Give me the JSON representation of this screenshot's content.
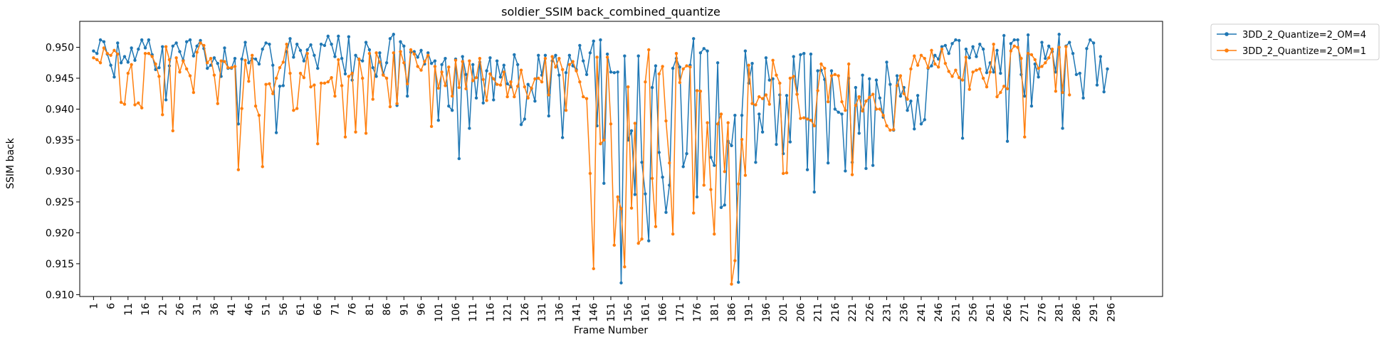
{
  "chart_data": {
    "type": "line",
    "title": "soldier_SSIM back_combined_quantize",
    "xlabel": "Frame Number",
    "ylabel": "SSIM back",
    "ylim": [
      0.9097,
      0.9542
    ],
    "xlim": [
      -3,
      311
    ],
    "yticks": [
      0.91,
      0.915,
      0.92,
      0.925,
      0.93,
      0.935,
      0.94,
      0.945,
      0.95
    ],
    "ytick_labels": [
      "0.910",
      "0.915",
      "0.920",
      "0.925",
      "0.930",
      "0.935",
      "0.940",
      "0.945",
      "0.950"
    ],
    "xticks": [
      1,
      6,
      11,
      16,
      21,
      26,
      31,
      36,
      41,
      46,
      51,
      56,
      61,
      66,
      71,
      76,
      81,
      86,
      91,
      96,
      101,
      106,
      111,
      116,
      121,
      126,
      131,
      136,
      141,
      146,
      151,
      156,
      161,
      166,
      171,
      176,
      181,
      186,
      191,
      196,
      201,
      206,
      211,
      216,
      221,
      226,
      231,
      236,
      241,
      246,
      251,
      256,
      261,
      266,
      271,
      276,
      281,
      286,
      291,
      296
    ],
    "xtick_labels": [
      "1",
      "6",
      "11",
      "16",
      "21",
      "26",
      "31",
      "36",
      "41",
      "46",
      "51",
      "56",
      "61",
      "66",
      "71",
      "76",
      "81",
      "86",
      "91",
      "96",
      "101",
      "106",
      "111",
      "116",
      "121",
      "126",
      "131",
      "136",
      "141",
      "146",
      "151",
      "156",
      "161",
      "166",
      "171",
      "176",
      "181",
      "186",
      "191",
      "196",
      "201",
      "206",
      "211",
      "216",
      "221",
      "226",
      "231",
      "236",
      "241",
      "246",
      "251",
      "256",
      "261",
      "266",
      "271",
      "276",
      "281",
      "286",
      "291",
      "296"
    ],
    "x_start": 1,
    "legend_position": "outside-top-right",
    "series": [
      {
        "name": "3DD_2_Quantize=2_OM=4",
        "color": "#1f77b4",
        "values": [
          0.9494,
          0.949,
          0.9512,
          0.9509,
          0.9489,
          0.9471,
          0.9452,
          0.9507,
          0.9475,
          0.9485,
          0.9476,
          0.9499,
          0.9479,
          0.9497,
          0.9512,
          0.9499,
          0.9512,
          0.9488,
          0.9464,
          0.9467,
          0.9501,
          0.9415,
          0.947,
          0.9502,
          0.9507,
          0.9493,
          0.9479,
          0.9509,
          0.9512,
          0.9486,
          0.9502,
          0.9511,
          0.9498,
          0.9466,
          0.9471,
          0.9483,
          0.9474,
          0.9453,
          0.9499,
          0.9466,
          0.9466,
          0.9482,
          0.9376,
          0.9481,
          0.9508,
          0.9475,
          0.9482,
          0.9481,
          0.9473,
          0.9497,
          0.9507,
          0.9505,
          0.9471,
          0.9362,
          0.9437,
          0.9438,
          0.9493,
          0.9514,
          0.9484,
          0.9505,
          0.9495,
          0.9478,
          0.9496,
          0.9504,
          0.9487,
          0.9466,
          0.9505,
          0.9503,
          0.9518,
          0.9505,
          0.9485,
          0.9518,
          0.9482,
          0.9457,
          0.9517,
          0.9447,
          0.9487,
          0.948,
          0.9478,
          0.9508,
          0.9496,
          0.9467,
          0.9453,
          0.9491,
          0.9456,
          0.9475,
          0.9514,
          0.9521,
          0.9406,
          0.9509,
          0.9502,
          0.9421,
          0.9492,
          0.9493,
          0.9484,
          0.9495,
          0.9473,
          0.9491,
          0.9474,
          0.9478,
          0.9382,
          0.9472,
          0.9482,
          0.9405,
          0.9398,
          0.9481,
          0.932,
          0.9485,
          0.9456,
          0.9369,
          0.9472,
          0.9418,
          0.9476,
          0.941,
          0.9462,
          0.9483,
          0.9415,
          0.9478,
          0.9452,
          0.9471,
          0.9441,
          0.9436,
          0.9488,
          0.9472,
          0.9375,
          0.9384,
          0.944,
          0.9433,
          0.9413,
          0.9487,
          0.9455,
          0.9487,
          0.9389,
          0.9478,
          0.9487,
          0.9455,
          0.9354,
          0.9459,
          0.9487,
          0.947,
          0.9464,
          0.9503,
          0.9478,
          0.9456,
          0.9491,
          0.951,
          0.9373,
          0.9512,
          0.928,
          0.9489,
          0.946,
          0.9459,
          0.946,
          0.9119,
          0.9486,
          0.935,
          0.9365,
          0.9262,
          0.9486,
          0.9314,
          0.9263,
          0.9187,
          0.9435,
          0.947,
          0.933,
          0.929,
          0.9233,
          0.9277,
          0.9466,
          0.9482,
          0.9468,
          0.9307,
          0.9328,
          0.9471,
          0.9514,
          0.9258,
          0.9491,
          0.9498,
          0.9494,
          0.9322,
          0.9309,
          0.9475,
          0.9241,
          0.9245,
          0.9348,
          0.9341,
          0.939,
          0.912,
          0.939,
          0.9494,
          0.9442,
          0.9474,
          0.9314,
          0.9392,
          0.9363,
          0.9483,
          0.9447,
          0.9449,
          0.9343,
          0.9423,
          0.9328,
          0.9422,
          0.9347,
          0.9485,
          0.9424,
          0.9488,
          0.949,
          0.9302,
          0.9489,
          0.9266,
          0.9462,
          0.9463,
          0.9448,
          0.9313,
          0.9462,
          0.94,
          0.9395,
          0.9392,
          0.93,
          0.945,
          0.9314,
          0.9435,
          0.9361,
          0.9455,
          0.9304,
          0.9449,
          0.9309,
          0.9447,
          0.9418,
          0.9387,
          0.9476,
          0.944,
          0.9366,
          0.9454,
          0.9421,
          0.9435,
          0.9398,
          0.9413,
          0.9368,
          0.9422,
          0.9376,
          0.9383,
          0.9466,
          0.947,
          0.9487,
          0.9481,
          0.9501,
          0.9503,
          0.949,
          0.9506,
          0.9512,
          0.9511,
          0.9353,
          0.9497,
          0.9483,
          0.9501,
          0.9485,
          0.9505,
          0.9497,
          0.9459,
          0.9475,
          0.946,
          0.9495,
          0.9458,
          0.9519,
          0.9348,
          0.9506,
          0.9512,
          0.9512,
          0.9456,
          0.9421,
          0.952,
          0.9405,
          0.9473,
          0.9452,
          0.9508,
          0.9482,
          0.9502,
          0.9493,
          0.946,
          0.9521,
          0.9369,
          0.9502,
          0.9508,
          0.949,
          0.9456,
          0.9458,
          0.9418,
          0.9498,
          0.9512,
          0.9507,
          0.9439,
          0.9485,
          0.9428,
          0.9465
        ]
      },
      {
        "name": "3DD_2_Quantize=2_OM=1",
        "color": "#ff7f0e",
        "values": [
          0.9483,
          0.948,
          0.9475,
          0.9499,
          0.949,
          0.9487,
          0.9495,
          0.9489,
          0.9411,
          0.9408,
          0.9458,
          0.9472,
          0.9407,
          0.941,
          0.9402,
          0.949,
          0.949,
          0.9485,
          0.9473,
          0.9453,
          0.9391,
          0.9501,
          0.948,
          0.9365,
          0.9483,
          0.946,
          0.9478,
          0.9465,
          0.9454,
          0.9427,
          0.9492,
          0.9507,
          0.9503,
          0.9475,
          0.9482,
          0.9455,
          0.9409,
          0.9478,
          0.9477,
          0.9467,
          0.9467,
          0.9469,
          0.9302,
          0.9401,
          0.9479,
          0.9445,
          0.9487,
          0.9405,
          0.939,
          0.9307,
          0.944,
          0.9441,
          0.9425,
          0.945,
          0.9467,
          0.9476,
          0.9505,
          0.9458,
          0.9398,
          0.9401,
          0.9458,
          0.9451,
          0.949,
          0.9436,
          0.9439,
          0.9344,
          0.9442,
          0.9442,
          0.9444,
          0.9451,
          0.9421,
          0.948,
          0.9438,
          0.9355,
          0.9453,
          0.9458,
          0.9363,
          0.9481,
          0.945,
          0.9361,
          0.949,
          0.9416,
          0.9491,
          0.9476,
          0.9455,
          0.945,
          0.9404,
          0.9491,
          0.9409,
          0.9493,
          0.9475,
          0.9441,
          0.9496,
          0.9489,
          0.9469,
          0.9463,
          0.9477,
          0.9487,
          0.9372,
          0.9469,
          0.9434,
          0.946,
          0.9438,
          0.9468,
          0.9421,
          0.9479,
          0.9435,
          0.9477,
          0.9433,
          0.9478,
          0.9446,
          0.9451,
          0.9482,
          0.9448,
          0.9414,
          0.9457,
          0.9449,
          0.944,
          0.9439,
          0.946,
          0.942,
          0.9444,
          0.942,
          0.9437,
          0.9463,
          0.9436,
          0.9418,
          0.9434,
          0.9449,
          0.945,
          0.9444,
          0.9482,
          0.9423,
          0.9485,
          0.9468,
          0.9482,
          0.9464,
          0.9398,
          0.9472,
          0.9477,
          0.9462,
          0.9444,
          0.942,
          0.9417,
          0.9296,
          0.9142,
          0.9484,
          0.9344,
          0.935,
          0.9484,
          0.9376,
          0.918,
          0.9258,
          0.9239,
          0.9145,
          0.9436,
          0.924,
          0.9377,
          0.9183,
          0.919,
          0.9444,
          0.9496,
          0.9288,
          0.921,
          0.9457,
          0.9469,
          0.9381,
          0.9313,
          0.9198,
          0.949,
          0.9443,
          0.9465,
          0.947,
          0.9468,
          0.9232,
          0.943,
          0.9429,
          0.9277,
          0.9378,
          0.927,
          0.9198,
          0.9376,
          0.9392,
          0.9299,
          0.9378,
          0.9117,
          0.9155,
          0.9279,
          0.9351,
          0.9293,
          0.9471,
          0.9409,
          0.9407,
          0.942,
          0.9417,
          0.9423,
          0.9408,
          0.9479,
          0.9455,
          0.9442,
          0.9296,
          0.9297,
          0.945,
          0.9453,
          0.9424,
          0.9385,
          0.9386,
          0.9384,
          0.9382,
          0.9373,
          0.943,
          0.9473,
          0.9466,
          0.9412,
          0.9454,
          0.9456,
          0.9454,
          0.9412,
          0.9398,
          0.9473,
          0.9294,
          0.9406,
          0.942,
          0.9397,
          0.9413,
          0.9419,
          0.9424,
          0.94,
          0.94,
          0.939,
          0.9373,
          0.9366,
          0.9367,
          0.9438,
          0.9454,
          0.9425,
          0.9416,
          0.9465,
          0.9486,
          0.9471,
          0.9487,
          0.9482,
          0.9467,
          0.9495,
          0.9473,
          0.9468,
          0.9497,
          0.9474,
          0.9461,
          0.9453,
          0.9463,
          0.9451,
          0.9447,
          0.9484,
          0.9432,
          0.946,
          0.9463,
          0.9465,
          0.945,
          0.9436,
          0.946,
          0.9505,
          0.942,
          0.9427,
          0.9437,
          0.9433,
          0.9494,
          0.9502,
          0.95,
          0.9482,
          0.9355,
          0.949,
          0.9488,
          0.948,
          0.9466,
          0.9469,
          0.9475,
          0.9483,
          0.9497,
          0.9429,
          0.95,
          0.9427,
          0.9501,
          0.9423
        ]
      }
    ]
  }
}
